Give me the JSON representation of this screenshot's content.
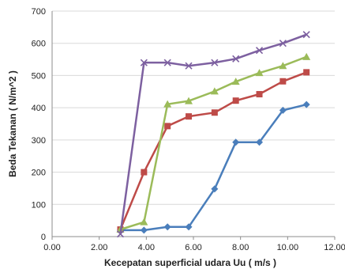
{
  "chart_data": {
    "type": "line",
    "title": "",
    "xlabel": "Kecepatan superficial udara Uu ( m/s )",
    "ylabel": "Beda Tekanan ( N/m^2 )",
    "xlim": [
      0,
      12
    ],
    "ylim": [
      0,
      700
    ],
    "x_ticks": [
      "0.00",
      "2.00",
      "4.00",
      "6.00",
      "8.00",
      "10.00",
      "12.00"
    ],
    "y_ticks": [
      "0",
      "100",
      "200",
      "300",
      "400",
      "500",
      "600",
      "700"
    ],
    "grid": "horizontal",
    "legend": "none",
    "series": [
      {
        "color": "#4a7ebb",
        "marker": "diamond",
        "x": [
          2.9,
          3.9,
          4.9,
          5.8,
          6.9,
          7.8,
          8.8,
          9.8,
          10.8
        ],
        "y": [
          20,
          20,
          30,
          30,
          148,
          293,
          293,
          392,
          410
        ]
      },
      {
        "color": "#be4b48",
        "marker": "square",
        "x": [
          2.9,
          3.9,
          4.9,
          5.8,
          6.9,
          7.8,
          8.8,
          9.8,
          10.8
        ],
        "y": [
          22,
          200,
          343,
          373,
          385,
          422,
          442,
          482,
          510
        ]
      },
      {
        "color": "#9bbb59",
        "marker": "triangle",
        "x": [
          2.9,
          3.9,
          4.9,
          5.8,
          6.9,
          7.8,
          8.8,
          9.8,
          10.8
        ],
        "y": [
          22,
          45,
          411,
          421,
          451,
          481,
          508,
          530,
          558
        ]
      },
      {
        "color": "#7d60a0",
        "marker": "x",
        "x": [
          2.9,
          3.9,
          4.9,
          5.8,
          6.9,
          7.8,
          8.8,
          9.8,
          10.8
        ],
        "y": [
          8,
          540,
          540,
          530,
          540,
          552,
          578,
          600,
          627
        ]
      }
    ]
  }
}
